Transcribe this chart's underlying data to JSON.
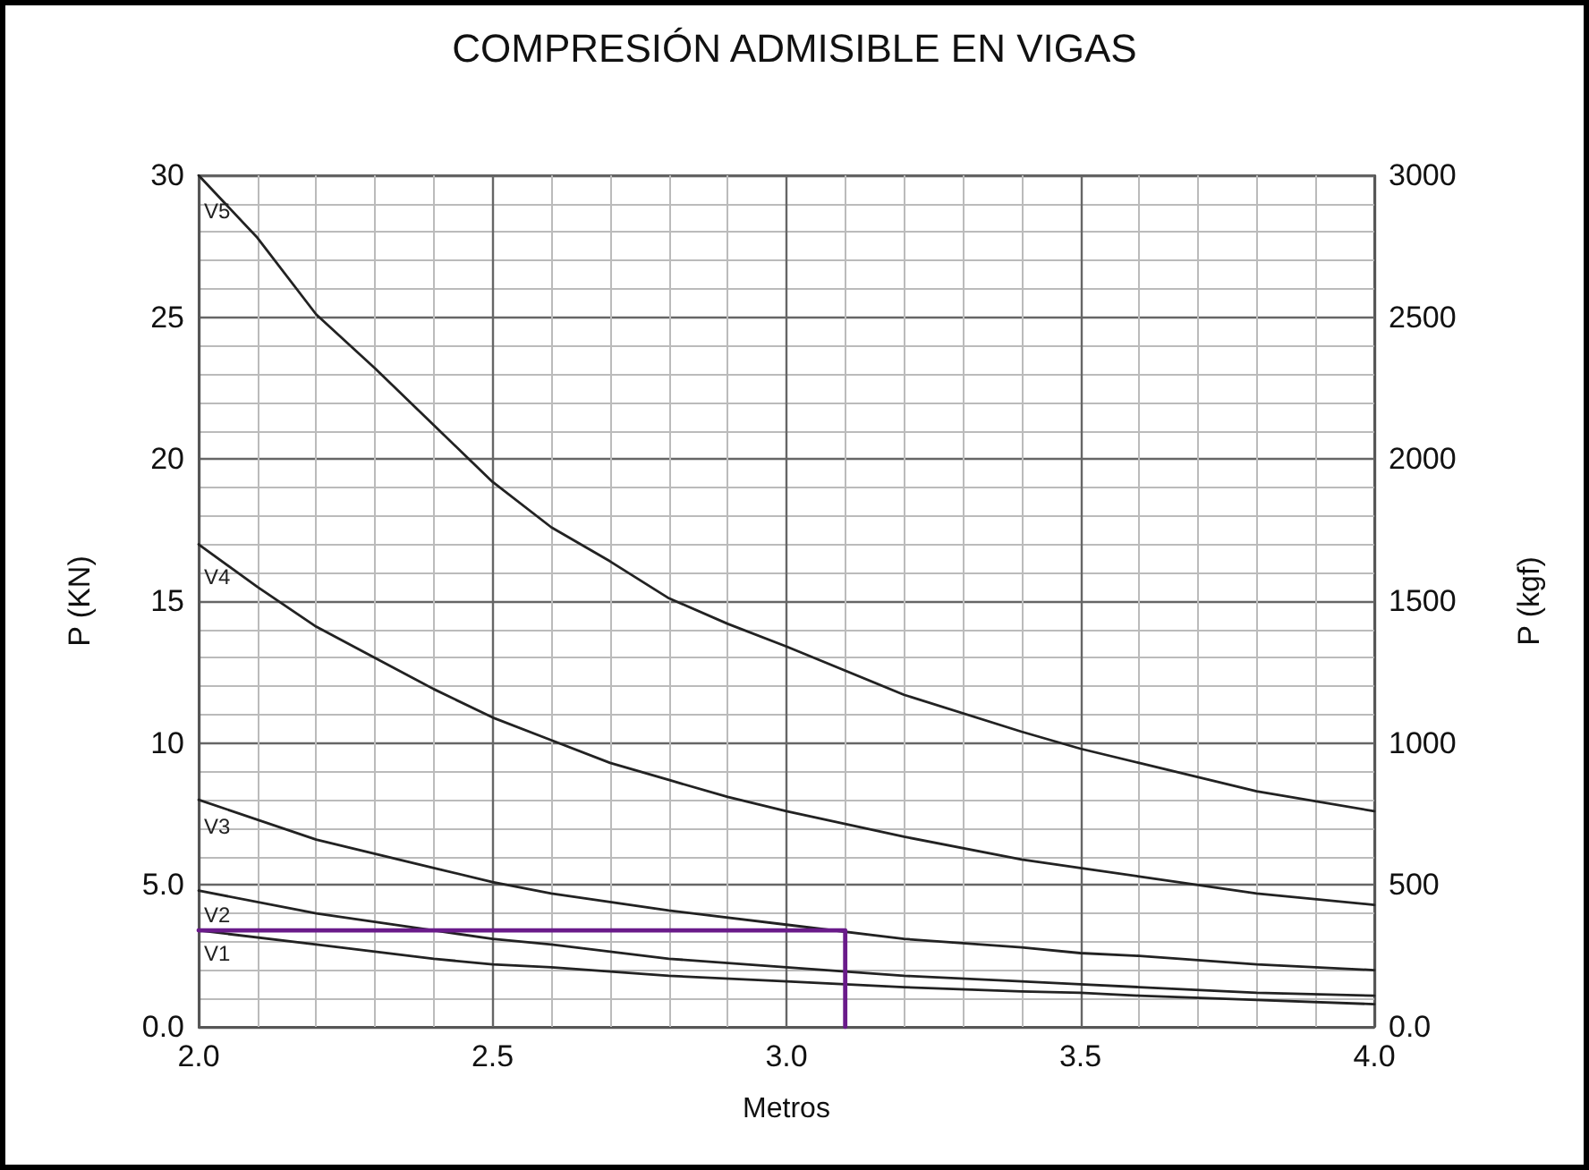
{
  "chart_data": {
    "type": "line",
    "title": "COMPRESIÓN ADMISIBLE EN VIGAS",
    "xlabel": "Metros",
    "ylabel": "P (KN)",
    "y2label": "P (kgf)",
    "x": [
      2.0,
      2.1,
      2.2,
      2.3,
      2.4,
      2.5,
      2.6,
      2.7,
      2.8,
      2.9,
      3.0,
      3.2,
      3.4,
      3.5,
      3.6,
      3.8,
      4.0
    ],
    "series": [
      {
        "name": "V1",
        "color": "#222222",
        "x": [
          2.0,
          2.2,
          2.4,
          2.5,
          2.6,
          2.8,
          3.0,
          3.2,
          3.4,
          3.5,
          3.6,
          3.8,
          4.0
        ],
        "values": [
          3.4,
          2.9,
          2.4,
          2.2,
          2.1,
          1.8,
          1.6,
          1.4,
          1.25,
          1.2,
          1.1,
          0.95,
          0.8
        ]
      },
      {
        "name": "V2",
        "color": "#222222",
        "x": [
          2.0,
          2.2,
          2.4,
          2.5,
          2.6,
          2.8,
          3.0,
          3.2,
          3.4,
          3.5,
          3.6,
          3.8,
          4.0
        ],
        "values": [
          4.8,
          4.0,
          3.4,
          3.1,
          2.9,
          2.4,
          2.1,
          1.8,
          1.6,
          1.5,
          1.4,
          1.2,
          1.1
        ]
      },
      {
        "name": "V3",
        "color": "#222222",
        "x": [
          2.0,
          2.2,
          2.4,
          2.5,
          2.6,
          2.8,
          3.0,
          3.2,
          3.4,
          3.5,
          3.6,
          3.8,
          4.0
        ],
        "values": [
          8.0,
          6.6,
          5.6,
          5.1,
          4.7,
          4.1,
          3.6,
          3.1,
          2.8,
          2.6,
          2.5,
          2.2,
          2.0
        ]
      },
      {
        "name": "V4",
        "color": "#222222",
        "values": [
          17.0,
          15.5,
          14.1,
          13.0,
          11.9,
          10.9,
          10.1,
          9.3,
          8.7,
          8.1,
          7.6,
          6.7,
          5.9,
          5.6,
          5.3,
          4.7,
          4.3
        ]
      },
      {
        "name": "V5",
        "color": "#222222",
        "values": [
          30.0,
          27.8,
          25.1,
          23.2,
          21.2,
          19.2,
          17.6,
          16.4,
          15.1,
          14.2,
          13.4,
          11.7,
          10.4,
          9.8,
          9.3,
          8.3,
          7.6
        ]
      },
      {
        "color": "#6a1b8a",
        "x": [
          2.0,
          3.1,
          3.1
        ],
        "values": [
          3.4,
          3.4,
          0
        ]
      }
    ],
    "xlim": [
      2.0,
      4.0
    ],
    "xticks": [
      {
        "value": 2.0,
        "label": "2.0"
      },
      2.5,
      {
        "value": 3.0,
        "label": "3.0"
      },
      3.5,
      {
        "value": 4.0,
        "label": "4.0"
      }
    ],
    "ylim": [
      0,
      30
    ],
    "yticks": [
      {
        "value": 0,
        "label": "0.0"
      },
      {
        "value": 5,
        "label": "5.0"
      },
      10,
      15,
      20,
      25,
      30
    ],
    "y2lim": [
      0,
      3000
    ],
    "y2ticks": [
      {
        "value": 0,
        "label": "0.0"
      },
      500,
      1000,
      1500,
      2000,
      2500,
      3000
    ],
    "grid": true,
    "legend": false,
    "marker": "none",
    "line_style": "solid"
  }
}
